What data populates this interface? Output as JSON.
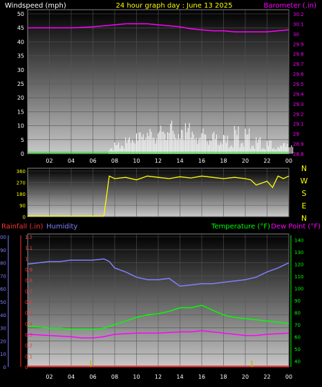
{
  "title": "24 hour graph day : June 13 2025",
  "colors": {
    "background": "#000000",
    "wind_label": "#ffffff",
    "title": "#ffff00",
    "barometer": "#ff00ff",
    "wind_speed": "#ffffff",
    "wind_gust": "#00ff00",
    "direction": "#ffff00",
    "rain": "#ff3333",
    "humidity": "#8080ff",
    "temperature": "#00ff00",
    "dew_point": "#ff00ff",
    "tick": "#ffffff"
  },
  "chart_data": [
    {
      "type": "line",
      "name": "wind-barometer",
      "left_axis_label": "Windspeed (mph)",
      "right_axis_label": "Barometer (.in)",
      "left_ticks": [
        "0",
        "5",
        "10",
        "15",
        "20",
        "25",
        "30",
        "35",
        "40",
        "45",
        "50"
      ],
      "right_ticks": [
        "28.8",
        "28.9",
        "29",
        "29.1",
        "29.2",
        "29.3",
        "29.4",
        "29.5",
        "29.6",
        "29.7",
        "29.8",
        "29.9",
        "30",
        "30.1",
        "30.2"
      ],
      "x_ticks": [
        "02",
        "04",
        "06",
        "08",
        "10",
        "12",
        "14",
        "16",
        "18",
        "20",
        "22",
        "00"
      ],
      "left_ylim": [
        0,
        50
      ],
      "right_ylim": [
        28.8,
        30.2
      ],
      "xlim": [
        0,
        24
      ],
      "barometer": {
        "x": [
          0,
          2,
          4,
          6,
          7,
          8,
          9,
          10,
          11,
          12,
          13,
          14,
          15,
          16,
          17,
          18,
          19,
          20,
          21,
          22,
          23,
          24
        ],
        "y": [
          30.06,
          30.06,
          30.06,
          30.07,
          30.08,
          30.09,
          30.1,
          30.1,
          30.1,
          30.09,
          30.08,
          30.07,
          30.05,
          30.04,
          30.03,
          30.03,
          30.02,
          30.02,
          30.02,
          30.02,
          30.03,
          30.04
        ]
      },
      "wind_speed": {
        "x": [
          7.5,
          8,
          8.5,
          9,
          9.5,
          10,
          10.5,
          11,
          11.5,
          12,
          12.5,
          13,
          13.5,
          14,
          14.5,
          15,
          15.5,
          16,
          16.5,
          17,
          17.5,
          18,
          18.5,
          19,
          19.5,
          20,
          20.5,
          21,
          21.5,
          22,
          22.5,
          23,
          23.5,
          24
        ],
        "y": [
          2,
          4,
          3,
          6,
          5,
          8,
          7,
          9,
          6,
          10,
          8,
          12,
          7,
          9,
          11,
          8,
          6,
          9,
          5,
          8,
          4,
          7,
          3,
          10,
          4,
          9,
          3,
          6,
          2,
          5,
          2,
          3,
          4,
          3
        ]
      },
      "wind_gust_level": 0.5
    },
    {
      "type": "line",
      "name": "wind-direction",
      "left_ticks": [
        "0",
        "90",
        "180",
        "270",
        "360"
      ],
      "right_labels": [
        "N",
        "W",
        "S",
        "E",
        "N"
      ],
      "ylim": [
        0,
        360
      ],
      "xlim": [
        0,
        24
      ],
      "direction": {
        "x": [
          0,
          7,
          7.5,
          8,
          9,
          10,
          11,
          12,
          13,
          14,
          15,
          16,
          17,
          18,
          19,
          20,
          20.5,
          21,
          22,
          22.5,
          23,
          23.5,
          24
        ],
        "y": [
          5,
          5,
          320,
          300,
          310,
          290,
          320,
          310,
          300,
          315,
          305,
          320,
          310,
          300,
          310,
          300,
          290,
          250,
          280,
          230,
          320,
          300,
          320
        ]
      }
    },
    {
      "type": "line",
      "name": "rain-humidity-temperature",
      "labels": {
        "rainfall": "Rainfall (.in)",
        "humidity": "Humidity",
        "temperature": "Temperature (°F)",
        "dew_point": "Dew Point (°F)"
      },
      "humidity_ticks": [
        "0",
        "10",
        "20",
        "30",
        "40",
        "50",
        "60",
        "70",
        "80",
        "90",
        "100"
      ],
      "rain_ticks": [
        "0",
        "0.1",
        "0.2",
        "0.3",
        "0.4",
        "0.5",
        "0.6",
        "0.7",
        "0.8",
        "0.9",
        "1",
        "1.1",
        "1.2"
      ],
      "temp_ticks": [
        "40",
        "50",
        "60",
        "70",
        "80",
        "90",
        "100",
        "110",
        "120",
        "130",
        "140"
      ],
      "x_ticks": [
        "02",
        "04",
        "06",
        "08",
        "10",
        "12",
        "14",
        "16",
        "18",
        "20",
        "22",
        "00"
      ],
      "humidity_ylim": [
        0,
        100
      ],
      "temp_ylim": [
        35,
        145
      ],
      "xlim": [
        0,
        24
      ],
      "humidity": {
        "x": [
          0,
          1,
          2,
          3,
          4,
          5,
          6,
          7,
          7.5,
          8,
          9,
          10,
          11,
          12,
          13,
          14,
          15,
          16,
          17,
          18,
          19,
          20,
          21,
          22,
          23,
          24
        ],
        "y": [
          79,
          80,
          81,
          81,
          82,
          82,
          82,
          83,
          81,
          76,
          73,
          69,
          67,
          67,
          68,
          62,
          63,
          64,
          64,
          65,
          66,
          67,
          69,
          73,
          76,
          80
        ]
      },
      "temperature": {
        "x": [
          0,
          1,
          2,
          3,
          4,
          5,
          6,
          7,
          8,
          9,
          10,
          11,
          12,
          13,
          14,
          15,
          16,
          17,
          18,
          19,
          20,
          21,
          22,
          23,
          24
        ],
        "y": [
          69,
          68,
          67,
          67,
          66,
          66,
          66,
          67,
          70,
          73,
          76,
          78,
          79,
          81,
          84,
          84,
          86,
          82,
          78,
          76,
          75,
          74,
          73,
          72,
          71
        ]
      },
      "dew_point": {
        "x": [
          0,
          2,
          4,
          5,
          6,
          7,
          8,
          10,
          12,
          14,
          15,
          16,
          18,
          20,
          21,
          22,
          24
        ],
        "y": [
          62,
          61,
          60,
          59,
          59,
          60,
          62,
          63,
          63,
          64,
          64,
          65,
          63,
          61,
          61,
          62,
          63
        ]
      },
      "rain_events": [
        {
          "x": 5.8,
          "value": 0.06
        },
        {
          "x": 20.6,
          "value": 0.06
        }
      ]
    }
  ]
}
